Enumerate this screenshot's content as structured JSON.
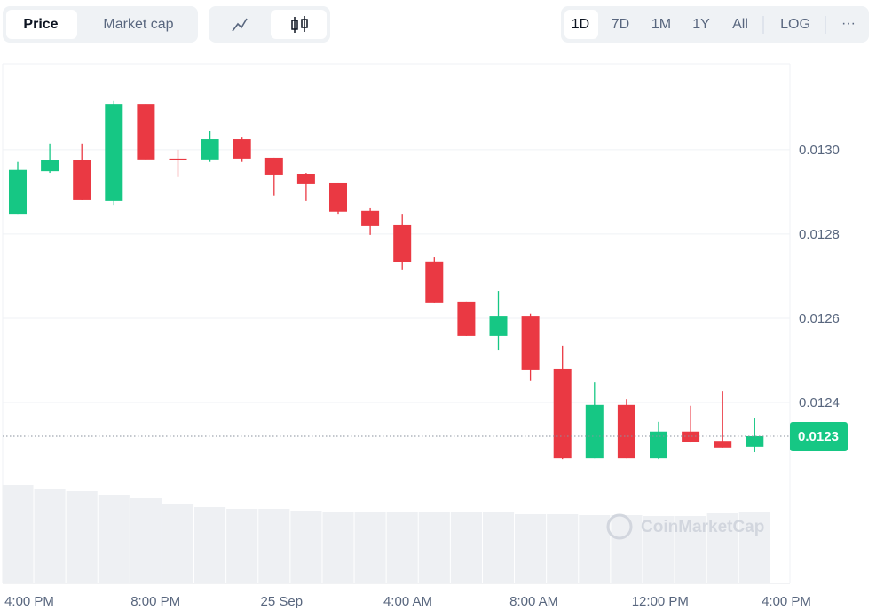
{
  "controls": {
    "view": [
      "Price",
      "Market cap"
    ],
    "ranges": [
      "1D",
      "7D",
      "1M",
      "1Y",
      "All"
    ],
    "log": "LOG",
    "more": "···"
  },
  "watermark": "CoinMarketCap",
  "chart_data": {
    "type": "candlestick",
    "up_color": "#16c784",
    "down_color": "#ea3943",
    "grid": true,
    "ylim": [
      0.012261,
      0.013204
    ],
    "yticks": [
      {
        "value": 0.013,
        "label": "0.0130"
      },
      0.0128,
      0.0126,
      0.0124
    ],
    "xticks": [
      "4:00 PM",
      "8:00 PM",
      "25 Sep",
      "4:00 AM",
      "8:00 AM",
      "12:00 PM",
      "4:00 PM"
    ],
    "current_price": {
      "value": 0.01232,
      "label": "0.0123"
    },
    "open": [
      0.012848,
      0.012949,
      0.012975,
      0.012878,
      0.013109,
      0.012979,
      0.012977,
      0.013025,
      0.012981,
      0.012943,
      0.012922,
      0.012855,
      0.012821,
      0.012735,
      0.012638,
      0.012558,
      0.012606,
      0.01248,
      0.012267,
      0.012394,
      0.012267,
      0.012331,
      0.012309,
      0.012295
    ],
    "high": [
      0.012971,
      0.013015,
      0.013015,
      0.013116,
      0.013109,
      0.013,
      0.013044,
      0.013029,
      0.012981,
      0.012945,
      0.012922,
      0.012861,
      0.012848,
      0.012745,
      0.012638,
      0.012665,
      0.012611,
      0.012535,
      0.012448,
      0.012408,
      0.012354,
      0.012392,
      0.012427,
      0.012362
    ],
    "low": [
      0.012848,
      0.012945,
      0.01288,
      0.012869,
      0.012977,
      0.012935,
      0.012971,
      0.012971,
      0.012891,
      0.012878,
      0.012848,
      0.012798,
      0.012716,
      0.012636,
      0.012558,
      0.012524,
      0.012451,
      0.012265,
      0.012267,
      0.012267,
      0.012265,
      0.012305,
      0.012293,
      0.012282
    ],
    "close": [
      0.012952,
      0.012975,
      0.01288,
      0.013109,
      0.012977,
      0.012977,
      0.013025,
      0.012979,
      0.012941,
      0.01292,
      0.012853,
      0.012819,
      0.012733,
      0.012636,
      0.012558,
      0.012606,
      0.012478,
      0.012267,
      0.012394,
      0.012267,
      0.012331,
      0.012307,
      0.012293,
      0.01232
    ],
    "volume": [
      111,
      107,
      104,
      100,
      96,
      89,
      86,
      84,
      84,
      82,
      81,
      80,
      80,
      80,
      81,
      80,
      78,
      78,
      77,
      77,
      76,
      76,
      79,
      80
    ],
    "vlim": [
      0,
      120
    ]
  }
}
